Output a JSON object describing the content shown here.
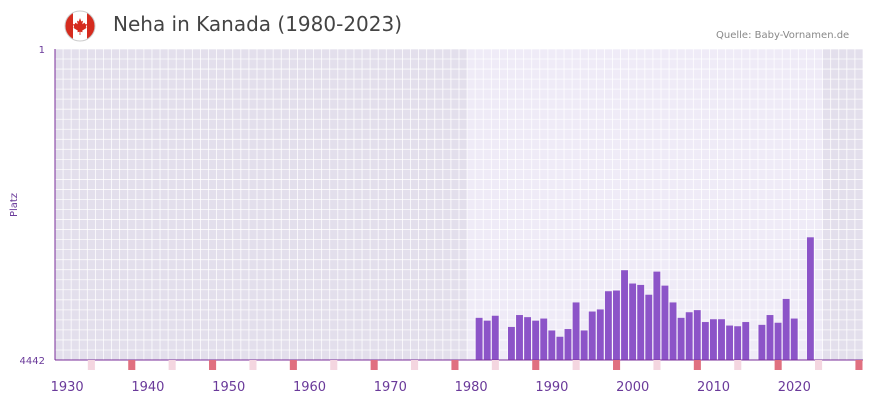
{
  "chart_data": {
    "type": "bar",
    "title": "Neha in Kanada (1980-2023)",
    "source": "Quelle: Baby-Vornamen.de",
    "ylabel": "Platz",
    "y_axis_reversed": true,
    "ylim": [
      1,
      4442
    ],
    "y_tick_labels": [
      "1",
      "4442"
    ],
    "x_range": [
      1929,
      2029
    ],
    "x_ticks": [
      1930,
      1940,
      1950,
      1960,
      1970,
      1980,
      1990,
      2000,
      2010,
      2020
    ],
    "data_range": [
      1980,
      2023
    ],
    "series": [
      {
        "name": "Platz",
        "points": [
          {
            "year": 1981,
            "rank": 3840
          },
          {
            "year": 1982,
            "rank": 3880
          },
          {
            "year": 1983,
            "rank": 3810
          },
          {
            "year": 1985,
            "rank": 3970
          },
          {
            "year": 1986,
            "rank": 3800
          },
          {
            "year": 1987,
            "rank": 3830
          },
          {
            "year": 1988,
            "rank": 3880
          },
          {
            "year": 1989,
            "rank": 3850
          },
          {
            "year": 1990,
            "rank": 4020
          },
          {
            "year": 1991,
            "rank": 4110
          },
          {
            "year": 1992,
            "rank": 4000
          },
          {
            "year": 1993,
            "rank": 3620
          },
          {
            "year": 1994,
            "rank": 4020
          },
          {
            "year": 1995,
            "rank": 3750
          },
          {
            "year": 1996,
            "rank": 3720
          },
          {
            "year": 1997,
            "rank": 3460
          },
          {
            "year": 1998,
            "rank": 3450
          },
          {
            "year": 1999,
            "rank": 3160
          },
          {
            "year": 2000,
            "rank": 3350
          },
          {
            "year": 2001,
            "rank": 3370
          },
          {
            "year": 2002,
            "rank": 3510
          },
          {
            "year": 2003,
            "rank": 3180
          },
          {
            "year": 2004,
            "rank": 3380
          },
          {
            "year": 2005,
            "rank": 3620
          },
          {
            "year": 2006,
            "rank": 3840
          },
          {
            "year": 2007,
            "rank": 3760
          },
          {
            "year": 2008,
            "rank": 3730
          },
          {
            "year": 2009,
            "rank": 3900
          },
          {
            "year": 2010,
            "rank": 3860
          },
          {
            "year": 2011,
            "rank": 3860
          },
          {
            "year": 2012,
            "rank": 3950
          },
          {
            "year": 2013,
            "rank": 3960
          },
          {
            "year": 2014,
            "rank": 3900
          },
          {
            "year": 2016,
            "rank": 3940
          },
          {
            "year": 2017,
            "rank": 3800
          },
          {
            "year": 2018,
            "rank": 3910
          },
          {
            "year": 2019,
            "rank": 3570
          },
          {
            "year": 2020,
            "rank": 3850
          },
          {
            "year": 2022,
            "rank": 2690
          }
        ]
      }
    ],
    "colors": {
      "bar": "#8c54c8",
      "plot_bg_outside": "#e3dfec",
      "plot_bg_inside": "#efebf7",
      "grid": "#ffffff",
      "axis": "#7a2e9a",
      "tick_text": "#6a3a9a",
      "decade_marker": "#e07080",
      "halfdecade_marker": "#f4d6e0"
    }
  }
}
